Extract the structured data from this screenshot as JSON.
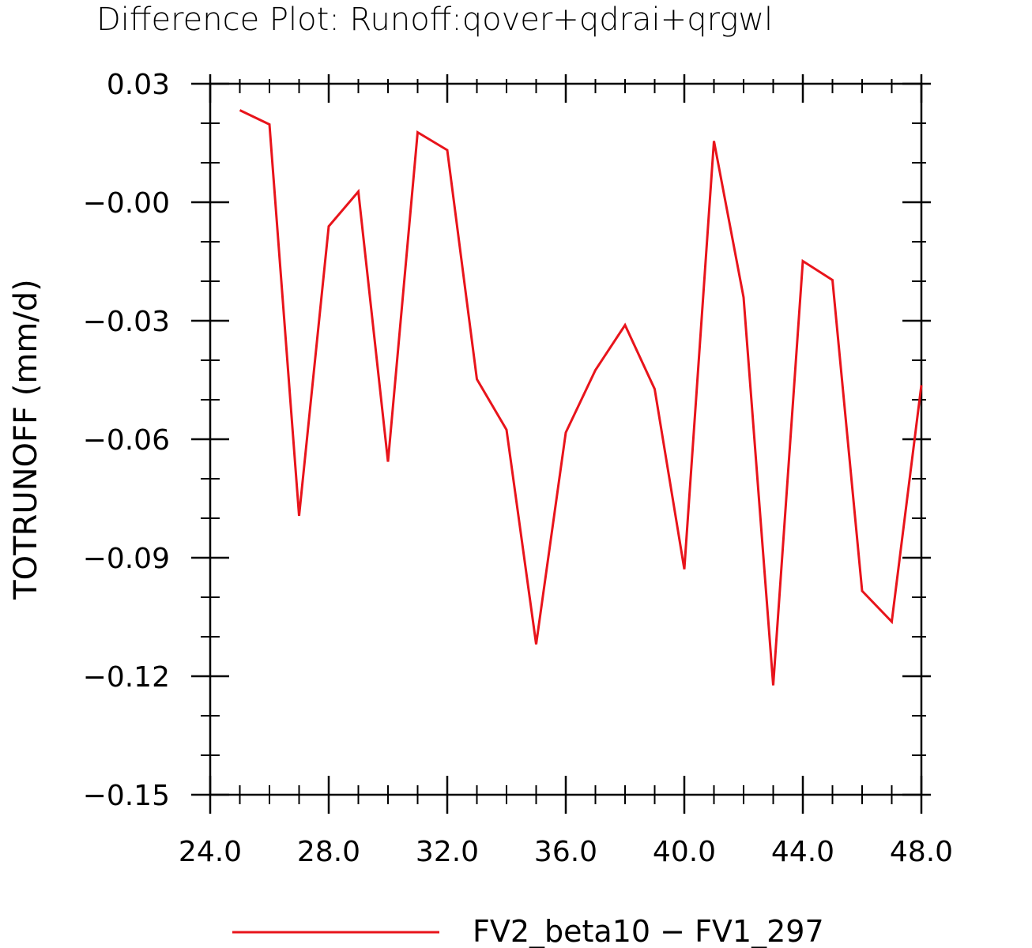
{
  "chart_data": {
    "type": "line",
    "title": "Difference Plot: Runoff:qover+qdrai+qrgwl",
    "xlabel": "",
    "ylabel": "TOTRUNOFF   (mm/d)",
    "xlim": [
      24.0,
      48.0
    ],
    "ylim": [
      -0.15,
      0.03
    ],
    "x_ticks": [
      24.0,
      28.0,
      32.0,
      36.0,
      40.0,
      44.0,
      48.0
    ],
    "x_tick_labels": [
      "24.0",
      "28.0",
      "32.0",
      "36.0",
      "40.0",
      "44.0",
      "48.0"
    ],
    "y_ticks": [
      0.03,
      0.0,
      -0.03,
      -0.06,
      -0.09,
      -0.12,
      -0.15
    ],
    "y_tick_labels": [
      "0.03",
      "−0.00",
      "−0.03",
      "−0.06",
      "−0.09",
      "−0.12",
      "−0.15"
    ],
    "grid": false,
    "legend_position": "bottom-center",
    "series": [
      {
        "name": "FV2_beta10 − FV1_297",
        "color": "#e8141b",
        "x": [
          25,
          26,
          27,
          28,
          29,
          30,
          31,
          32,
          33,
          34,
          35,
          36,
          37,
          38,
          39,
          40,
          41,
          42,
          43,
          44,
          45,
          46,
          47,
          48
        ],
        "y": [
          0.0233,
          0.0197,
          -0.0794,
          -0.0061,
          0.0027,
          -0.0657,
          0.0177,
          0.0132,
          -0.0448,
          -0.0576,
          -0.1119,
          -0.0583,
          -0.0425,
          -0.0311,
          -0.0473,
          -0.0929,
          0.0155,
          -0.0241,
          -0.1223,
          -0.0149,
          -0.0197,
          -0.0984,
          -0.1062,
          -0.0463
        ]
      }
    ]
  }
}
